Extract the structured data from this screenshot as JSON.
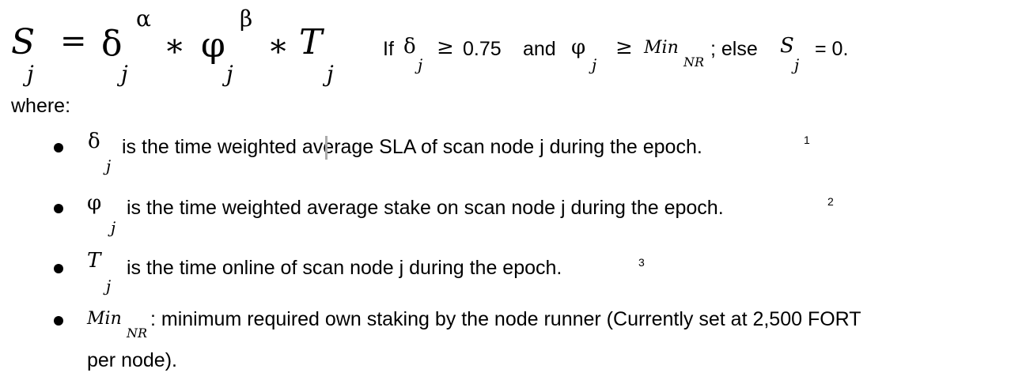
{
  "formula": {
    "lhs_symbol": "S",
    "lhs_sub": "j",
    "equals": "=",
    "delta": "δ",
    "delta_sub": "j",
    "alpha": "α",
    "times1": "∗",
    "phi": "φ",
    "phi_sub": "j",
    "beta": "β",
    "times2": "∗",
    "t_symbol": "T",
    "t_sub": "j"
  },
  "condition": {
    "if_text": "If",
    "delta": "δ",
    "delta_sub": "j",
    "geq1": "≥",
    "threshold": "0.75",
    "and_text": "and",
    "phi": "φ",
    "phi_sub": "j",
    "geq2": "≥",
    "min_symbol": "Min",
    "min_sub": "NR",
    "else_text": "; else",
    "s_symbol": "S",
    "s_sub": "j",
    "result": "= 0."
  },
  "where_label": "where:",
  "bullets": [
    {
      "symbol": "δ",
      "sub": "j",
      "text": "is the time weighted average SLA of scan node j during the epoch.",
      "footnote": "1"
    },
    {
      "symbol": "φ",
      "sub": "j",
      "text": "is the time weighted average stake on scan node j during the epoch.",
      "footnote": "2"
    },
    {
      "symbol": "T",
      "sub": "j",
      "text": "is the time online of scan node j during the epoch.",
      "footnote": "3"
    },
    {
      "symbol": "Min",
      "sub": "NR",
      "text": ": minimum required own staking by the node runner (Currently set at 2,500 FORT",
      "continuation": "per node)."
    }
  ]
}
